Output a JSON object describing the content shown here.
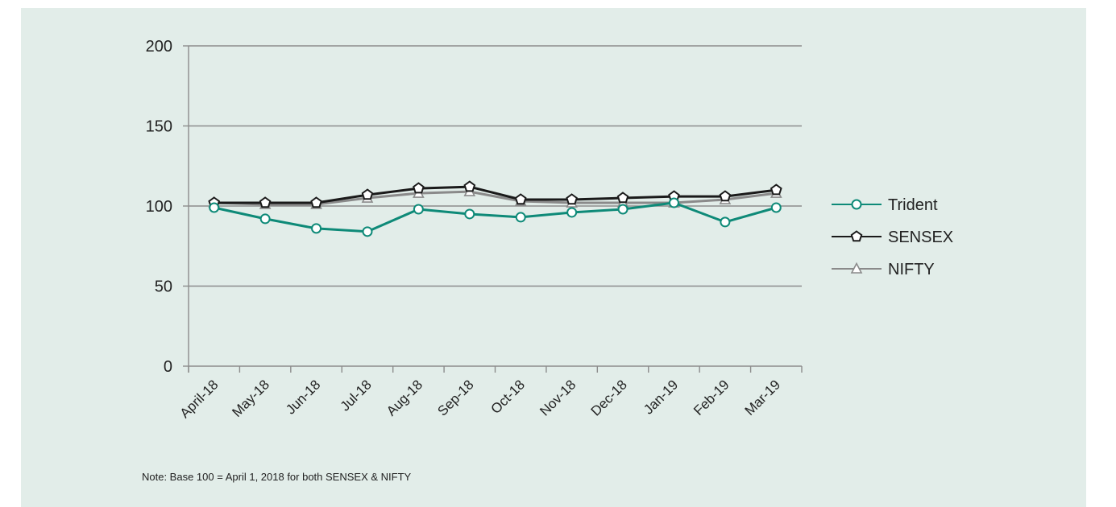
{
  "chart_data": {
    "type": "line",
    "categories": [
      "April-18",
      "May-18",
      "Jun-18",
      "Jul-18",
      "Aug-18",
      "Sep-18",
      "Oct-18",
      "Nov-18",
      "Dec-18",
      "Jan-19",
      "Feb-19",
      "Mar-19"
    ],
    "ylim": [
      0,
      200
    ],
    "yticks": [
      "0",
      "50",
      "100",
      "150",
      "200"
    ],
    "grid": true,
    "legend_position": "right",
    "series": [
      {
        "name": "Trident",
        "color": "#0e8a78",
        "marker": "circle",
        "values": [
          99,
          92,
          86,
          84,
          98,
          95,
          93,
          96,
          98,
          102,
          90,
          99
        ]
      },
      {
        "name": "SENSEX",
        "color": "#1a1a1a",
        "marker": "pentagon",
        "values": [
          102,
          102,
          102,
          107,
          111,
          112,
          104,
          104,
          105,
          106,
          106,
          110
        ]
      },
      {
        "name": "NIFTY",
        "color": "#8a8a8a",
        "marker": "triangle",
        "values": [
          102,
          101,
          101,
          105,
          108,
          109,
          103,
          102,
          102,
          102,
          104,
          108
        ]
      }
    ],
    "note": "Note: Base 100 = April 1, 2018 for both SENSEX & NIFTY"
  }
}
